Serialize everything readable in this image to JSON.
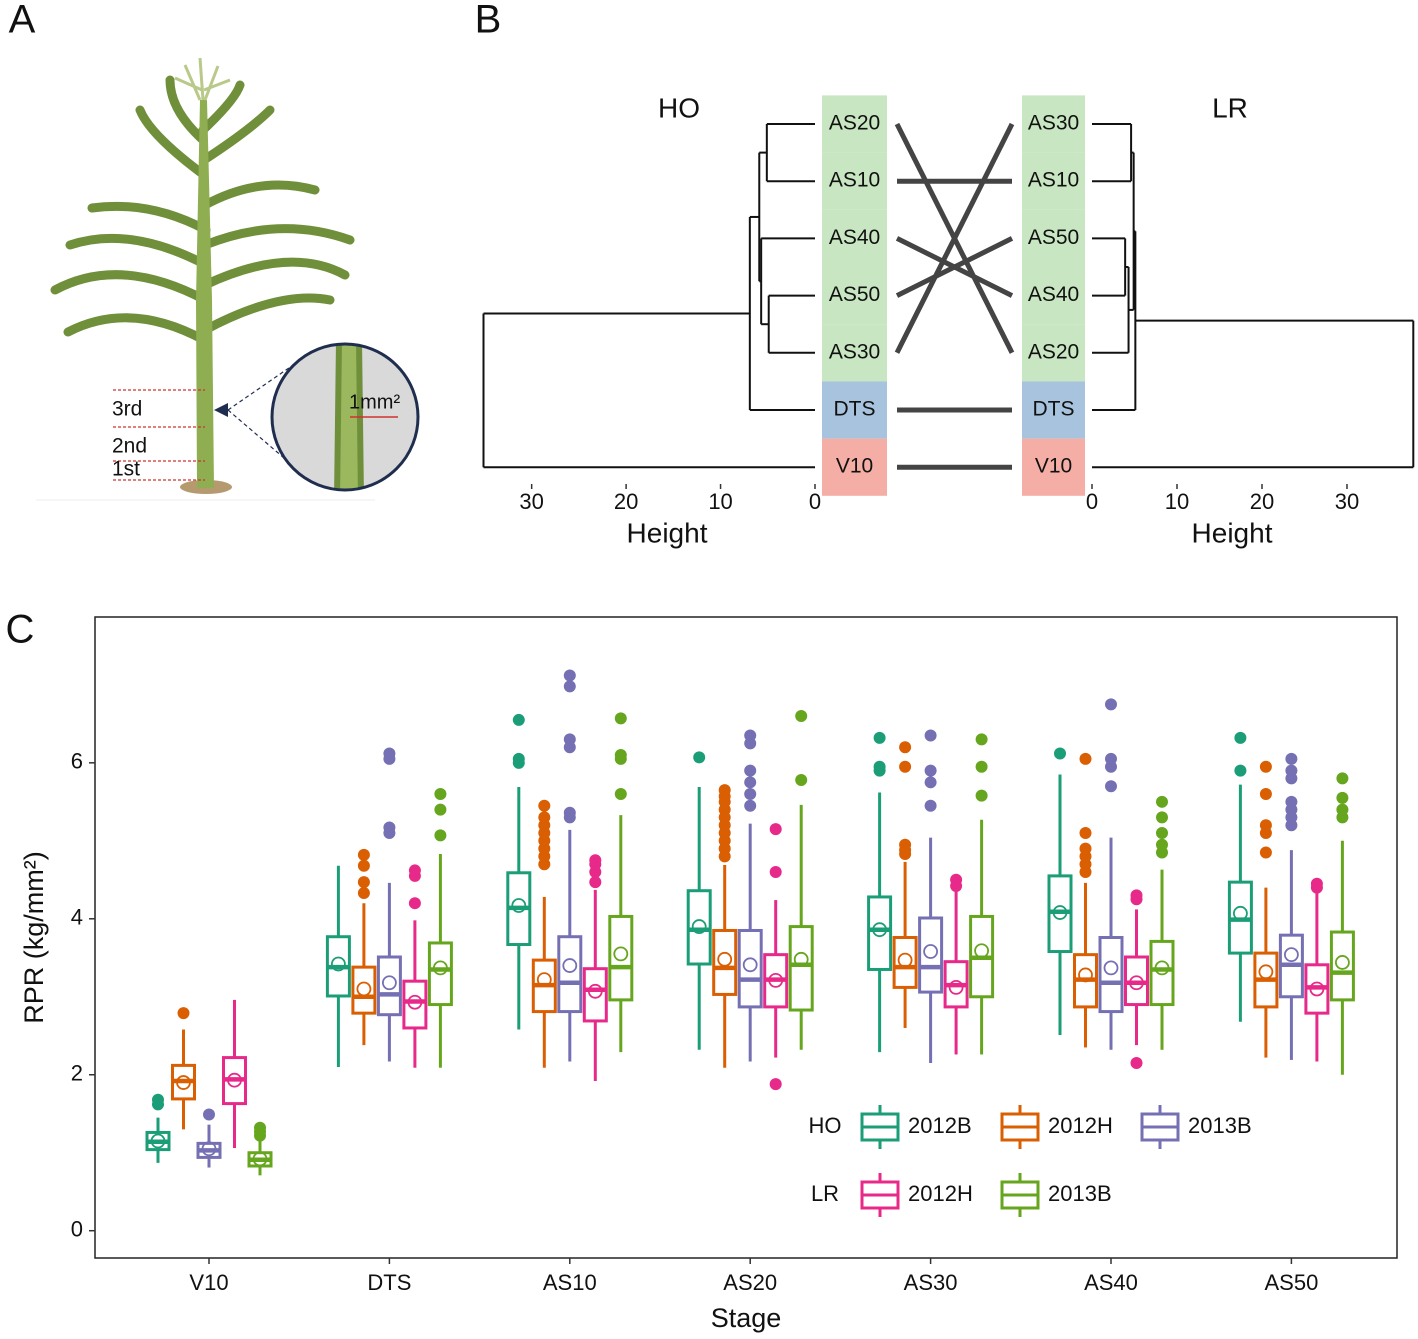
{
  "panel_labels": [
    "A",
    "B",
    "C"
  ],
  "plant": {
    "segments": [
      "3rd",
      "2nd",
      "1st"
    ],
    "scale_label": "1mm²"
  },
  "chart_data": [
    {
      "type": "tanglegram",
      "left": {
        "title": "HO",
        "xlabel": "Height",
        "xlim": [
          0,
          36
        ],
        "xticks": [
          0,
          10,
          20,
          30
        ],
        "tree": {
          "height": 35.1,
          "children": [
            {
              "height": 6.9,
              "children": [
                {
                  "height": 5.9,
                  "children": [
                    {
                      "height": 5.1,
                      "children": [
                        {
                          "label": "AS20",
                          "color": "#c8e6c1"
                        },
                        {
                          "label": "AS10",
                          "color": "#c8e6c1"
                        }
                      ]
                    },
                    {
                      "height": 5.7,
                      "children": [
                        {
                          "label": "AS40",
                          "color": "#c8e6c1"
                        },
                        {
                          "height": 4.9,
                          "children": [
                            {
                              "label": "AS50",
                              "color": "#c8e6c1"
                            },
                            {
                              "label": "AS30",
                              "color": "#c8e6c1"
                            }
                          ]
                        }
                      ]
                    }
                  ]
                },
                {
                  "label": "DTS",
                  "color": "#a7c3de"
                }
              ]
            },
            {
              "label": "V10",
              "color": "#f4aea6"
            }
          ]
        }
      },
      "right": {
        "title": "LR",
        "xlabel": "Height",
        "xlim": [
          0,
          38
        ],
        "xticks": [
          0,
          10,
          20,
          30
        ],
        "tree": {
          "height": 37.8,
          "children": [
            {
              "height": 5.1,
              "children": [
                {
                  "height": 4.9,
                  "children": [
                    {
                      "height": 4.6,
                      "children": [
                        {
                          "label": "AS30",
                          "color": "#c8e6c1"
                        },
                        {
                          "label": "AS10",
                          "color": "#c8e6c1"
                        }
                      ]
                    },
                    {
                      "height": 4.3,
                      "children": [
                        {
                          "height": 3.9,
                          "children": [
                            {
                              "label": "AS50",
                              "color": "#c8e6c1"
                            },
                            {
                              "label": "AS40",
                              "color": "#c8e6c1"
                            }
                          ]
                        },
                        {
                          "label": "AS20",
                          "color": "#c8e6c1"
                        }
                      ]
                    }
                  ]
                },
                {
                  "label": "DTS",
                  "color": "#a7c3de"
                }
              ]
            },
            {
              "label": "V10",
              "color": "#f4aea6"
            }
          ]
        }
      }
    },
    {
      "type": "box",
      "xlabel": "Stage",
      "ylabel": "RPR (kg/mm²)",
      "categories": [
        "V10",
        "DTS",
        "AS10",
        "AS20",
        "AS30",
        "AS40",
        "AS50"
      ],
      "ylim": [
        -0.35,
        7.87
      ],
      "yticks": [
        0,
        2,
        4,
        6
      ],
      "groups": [
        {
          "name": "HO",
          "series": [
            {
              "name": "2012B",
              "color": "#1b9e77",
              "boxes": [
                {
                  "whislo": 0.87,
                  "q1": 1.04,
                  "med": 1.14,
                  "q3": 1.26,
                  "whishi": 1.45,
                  "mean": 1.15,
                  "fliers": [
                    1.62,
                    1.68
                  ]
                },
                {
                  "whislo": 2.1,
                  "q1": 3.01,
                  "med": 3.38,
                  "q3": 3.77,
                  "whishi": 4.68,
                  "mean": 3.42,
                  "fliers": []
                },
                {
                  "whislo": 2.58,
                  "q1": 3.67,
                  "med": 4.14,
                  "q3": 4.59,
                  "whishi": 5.69,
                  "mean": 4.17,
                  "fliers": [
                    6.0,
                    6.05,
                    6.55
                  ]
                },
                {
                  "whislo": 2.32,
                  "q1": 3.42,
                  "med": 3.86,
                  "q3": 4.36,
                  "whishi": 5.69,
                  "mean": 3.9,
                  "fliers": [
                    6.07
                  ]
                },
                {
                  "whislo": 2.29,
                  "q1": 3.35,
                  "med": 3.86,
                  "q3": 4.28,
                  "whishi": 5.62,
                  "mean": 3.86,
                  "fliers": [
                    5.9,
                    5.95,
                    6.32
                  ]
                },
                {
                  "whislo": 2.51,
                  "q1": 3.58,
                  "med": 4.09,
                  "q3": 4.55,
                  "whishi": 5.85,
                  "mean": 4.08,
                  "fliers": [
                    6.12
                  ]
                },
                {
                  "whislo": 2.68,
                  "q1": 3.56,
                  "med": 3.99,
                  "q3": 4.47,
                  "whishi": 5.72,
                  "mean": 4.07,
                  "fliers": [
                    5.9,
                    6.32
                  ]
                }
              ]
            },
            {
              "name": "2012H",
              "color": "#d95f02",
              "boxes": [
                {
                  "whislo": 1.3,
                  "q1": 1.69,
                  "med": 1.92,
                  "q3": 2.12,
                  "whishi": 2.58,
                  "mean": 1.9,
                  "fliers": [
                    2.79
                  ]
                },
                {
                  "whislo": 2.38,
                  "q1": 2.79,
                  "med": 3.0,
                  "q3": 3.38,
                  "whishi": 4.2,
                  "mean": 3.1,
                  "fliers": [
                    4.33,
                    4.47,
                    4.68,
                    4.82
                  ]
                },
                {
                  "whislo": 2.09,
                  "q1": 2.81,
                  "med": 3.15,
                  "q3": 3.47,
                  "whishi": 4.28,
                  "mean": 3.22,
                  "fliers": [
                    4.7,
                    4.8,
                    4.9,
                    5.0,
                    5.1,
                    5.2,
                    5.3,
                    5.45
                  ]
                },
                {
                  "whislo": 2.09,
                  "q1": 3.03,
                  "med": 3.37,
                  "q3": 3.85,
                  "whishi": 4.69,
                  "mean": 3.48,
                  "fliers": [
                    4.8,
                    4.9,
                    5.0,
                    5.1,
                    5.2,
                    5.3,
                    5.4,
                    5.5,
                    5.57,
                    5.65
                  ]
                },
                {
                  "whislo": 2.6,
                  "q1": 3.12,
                  "med": 3.38,
                  "q3": 3.76,
                  "whishi": 4.73,
                  "mean": 3.47,
                  "fliers": [
                    4.83,
                    4.88,
                    4.95,
                    5.95,
                    6.2
                  ]
                },
                {
                  "whislo": 2.35,
                  "q1": 2.87,
                  "med": 3.22,
                  "q3": 3.54,
                  "whishi": 4.46,
                  "mean": 3.28,
                  "fliers": [
                    4.6,
                    4.7,
                    4.8,
                    4.9,
                    5.1,
                    6.05
                  ]
                },
                {
                  "whislo": 2.22,
                  "q1": 2.87,
                  "med": 3.22,
                  "q3": 3.56,
                  "whishi": 4.4,
                  "mean": 3.32,
                  "fliers": [
                    4.85,
                    5.1,
                    5.2,
                    5.6,
                    5.95
                  ]
                }
              ]
            },
            {
              "name": "2013B",
              "color": "#7570b3",
              "boxes": [
                {
                  "whislo": 0.81,
                  "q1": 0.94,
                  "med": 1.03,
                  "q3": 1.12,
                  "whishi": 1.36,
                  "mean": 1.05,
                  "fliers": [
                    1.49
                  ]
                },
                {
                  "whislo": 2.17,
                  "q1": 2.77,
                  "med": 3.03,
                  "q3": 3.51,
                  "whishi": 4.46,
                  "mean": 3.18,
                  "fliers": [
                    5.1,
                    5.17,
                    6.05,
                    6.12
                  ]
                },
                {
                  "whislo": 2.17,
                  "q1": 2.81,
                  "med": 3.18,
                  "q3": 3.77,
                  "whishi": 5.14,
                  "mean": 3.4,
                  "fliers": [
                    5.3,
                    5.36,
                    6.2,
                    6.3,
                    6.98,
                    7.12
                  ]
                },
                {
                  "whislo": 2.17,
                  "q1": 2.87,
                  "med": 3.22,
                  "q3": 3.85,
                  "whishi": 5.22,
                  "mean": 3.41,
                  "fliers": [
                    5.45,
                    5.6,
                    5.75,
                    5.9,
                    6.25,
                    6.35
                  ]
                },
                {
                  "whislo": 2.15,
                  "q1": 3.06,
                  "med": 3.38,
                  "q3": 4.01,
                  "whishi": 5.04,
                  "mean": 3.58,
                  "fliers": [
                    5.45,
                    5.75,
                    5.9,
                    6.35
                  ]
                },
                {
                  "whislo": 2.32,
                  "q1": 2.81,
                  "med": 3.18,
                  "q3": 3.76,
                  "whishi": 5.04,
                  "mean": 3.37,
                  "fliers": [
                    5.7,
                    5.95,
                    6.05,
                    6.75
                  ]
                },
                {
                  "whislo": 2.19,
                  "q1": 3.0,
                  "med": 3.41,
                  "q3": 3.79,
                  "whishi": 4.88,
                  "mean": 3.54,
                  "fliers": [
                    5.2,
                    5.3,
                    5.4,
                    5.5,
                    5.8,
                    5.9,
                    6.05
                  ]
                }
              ]
            }
          ]
        },
        {
          "name": "LR",
          "series": [
            {
              "name": "2012H",
              "color": "#e7298a",
              "boxes": [
                {
                  "whislo": 1.06,
                  "q1": 1.63,
                  "med": 1.94,
                  "q3": 2.22,
                  "whishi": 2.96,
                  "mean": 1.93,
                  "fliers": []
                },
                {
                  "whislo": 2.09,
                  "q1": 2.6,
                  "med": 2.94,
                  "q3": 3.2,
                  "whishi": 3.98,
                  "mean": 2.93,
                  "fliers": [
                    4.2,
                    4.55,
                    4.62
                  ]
                },
                {
                  "whislo": 1.92,
                  "q1": 2.69,
                  "med": 3.09,
                  "q3": 3.36,
                  "whishi": 4.37,
                  "mean": 3.07,
                  "fliers": [
                    4.47,
                    4.6,
                    4.7,
                    4.75
                  ]
                },
                {
                  "whislo": 2.22,
                  "q1": 2.87,
                  "med": 3.22,
                  "q3": 3.54,
                  "whishi": 4.24,
                  "mean": 3.21,
                  "fliers": [
                    1.88,
                    4.6,
                    5.15
                  ]
                },
                {
                  "whislo": 2.26,
                  "q1": 2.87,
                  "med": 3.15,
                  "q3": 3.45,
                  "whishi": 4.35,
                  "mean": 3.12,
                  "fliers": [
                    4.42,
                    4.5
                  ]
                },
                {
                  "whislo": 2.38,
                  "q1": 2.9,
                  "med": 3.18,
                  "q3": 3.51,
                  "whishi": 4.12,
                  "mean": 3.18,
                  "fliers": [
                    2.15,
                    4.25,
                    4.3
                  ]
                },
                {
                  "whislo": 2.17,
                  "q1": 2.79,
                  "med": 3.12,
                  "q3": 3.41,
                  "whishi": 4.37,
                  "mean": 3.1,
                  "fliers": [
                    4.4,
                    4.45
                  ]
                }
              ]
            },
            {
              "name": "2013B",
              "color": "#66a61e",
              "boxes": [
                {
                  "whislo": 0.71,
                  "q1": 0.83,
                  "med": 0.91,
                  "q3": 1.0,
                  "whishi": 1.17,
                  "mean": 0.92,
                  "fliers": [
                    1.22,
                    1.27,
                    1.32
                  ]
                },
                {
                  "whislo": 2.09,
                  "q1": 2.9,
                  "med": 3.35,
                  "q3": 3.69,
                  "whishi": 4.83,
                  "mean": 3.37,
                  "fliers": [
                    5.07,
                    5.4,
                    5.6
                  ]
                },
                {
                  "whislo": 2.29,
                  "q1": 2.96,
                  "med": 3.38,
                  "q3": 4.03,
                  "whishi": 5.33,
                  "mean": 3.55,
                  "fliers": [
                    5.6,
                    6.05,
                    6.1,
                    6.57
                  ]
                },
                {
                  "whislo": 2.32,
                  "q1": 2.83,
                  "med": 3.41,
                  "q3": 3.9,
                  "whishi": 5.46,
                  "mean": 3.48,
                  "fliers": [
                    5.78,
                    6.6
                  ]
                },
                {
                  "whislo": 2.26,
                  "q1": 3.0,
                  "med": 3.5,
                  "q3": 4.03,
                  "whishi": 5.27,
                  "mean": 3.59,
                  "fliers": [
                    5.58,
                    5.95,
                    6.3
                  ]
                },
                {
                  "whislo": 2.32,
                  "q1": 2.9,
                  "med": 3.35,
                  "q3": 3.71,
                  "whishi": 4.63,
                  "mean": 3.37,
                  "fliers": [
                    4.85,
                    4.95,
                    5.1,
                    5.3,
                    5.5
                  ]
                },
                {
                  "whislo": 2.0,
                  "q1": 2.96,
                  "med": 3.31,
                  "q3": 3.83,
                  "whishi": 5.0,
                  "mean": 3.44,
                  "fliers": [
                    5.3,
                    5.4,
                    5.55,
                    5.8
                  ]
                }
              ]
            }
          ]
        }
      ]
    }
  ]
}
